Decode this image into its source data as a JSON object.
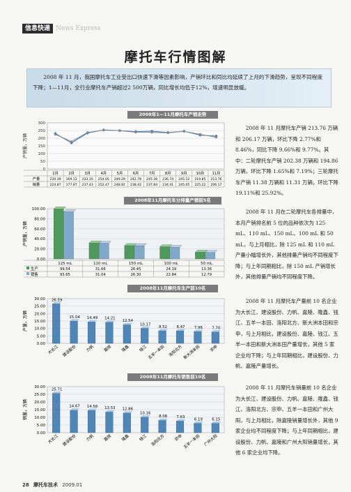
{
  "section": {
    "label": "信息快递",
    "sub": "News Express"
  },
  "title": "摩托车行情图解",
  "intro": "2008 年 11 月，我国摩托车工业受出口快速下滑等因素影响，产销环比和同比均延续了上月的下滑趋势，呈现不同程度下降；1—11月，全行业摩托车产销超过2 500万辆，同比增长均低于12%，增速明显放缓。",
  "chart1": {
    "title": "2008年1—11月摩托车产销走势",
    "ylabel": "产销量，万辆",
    "months": [
      "1月",
      "2月",
      "3月",
      "4月",
      "5月",
      "6月",
      "7月",
      "8月",
      "9月",
      "10月",
      "11月"
    ],
    "series": [
      {
        "name": "产量",
        "values": [
          230.39,
          169.12,
          233.35,
          254.05,
          249.29,
          242.78,
          245.36,
          236.74,
          245.12,
          219.85,
          213.76
        ]
      },
      {
        "name": "销量",
        "values": [
          224.87,
          177.87,
          237.43,
          252.47,
          248.81,
          238.42,
          237.84,
          234.41,
          245.05,
          225.22,
          206.17
        ]
      }
    ],
    "yticks": [
      0,
      50,
      100,
      150,
      200,
      250,
      300
    ]
  },
  "para1": "2008 年 11 月摩托车产销 213.76 万辆和 206.17 万辆，环比下降 2.77%和 8.46%，同比下降 9.66%和 9.77%。其中：二轮摩托车产销 202.38 万辆和 194.86 万辆，环比下降 1.65%和 7.19%；三轮摩托车产销 11.38 万辆和 11.31 万辆，环比下降 19.11%和 25.92%。",
  "chart2": {
    "title": "2008年11月摩托车分排量产销前5名",
    "ylabel": "产销量，万辆",
    "categories": [
      "125 mL",
      "110 mL",
      "150 mL",
      "100 mL",
      "50 mL"
    ],
    "series": [
      {
        "name": "生产",
        "values": [
          99.54,
          31.66,
          26.45,
          24.19,
          13.36
        ]
      },
      {
        "name": "销售",
        "values": [
          93.65,
          31.04,
          26.3,
          22.84,
          12.79
        ]
      }
    ],
    "yticks": [
      "0.00",
      "20.00",
      "40.00",
      "60.00",
      "80.00",
      "100.00"
    ]
  },
  "para2": "2008 年 11 月在二轮摩托车各排量中，本月产销排名前 5 位的品种依次为 125 mL、110 mL、150 mL、100 mL 和 50 mL，与上月相比，除 125 mL 和 110 mL 产量小幅增长外，其他排量产销均不同程度下降；与上年同期相比，除 150 mL 产销增长外，其他排量产销均不同程度下降。",
  "chart3": {
    "title": "2008年11月摩托车生产前10名",
    "ylabel": "产量，万辆",
    "categories": [
      "大长江",
      "建设股份",
      "力帆",
      "嘉陵",
      "隆鑫",
      "钱江",
      "五羊一本田",
      "洛阳北方",
      "新大洲本田",
      "宗申"
    ],
    "values": [
      26.59,
      15.04,
      14.49,
      14.21,
      12.54,
      10.17,
      8.52,
      8.47,
      7.96,
      7.7
    ],
    "yticks": [
      "0.00",
      "5.00",
      "10.00",
      "15.00",
      "20.00",
      "25.00",
      "30.00"
    ]
  },
  "para3": "2008 年 11 月摩托车产量前 10 名企业为大长江、建设股份、力帆、嘉陵、隆鑫、钱江、五羊一本田、洛阳北方、新大洲本田和宗申，与上月相比，建设股份、嘉陵、钱江、五羊一本田和新大洲本田产量增长，其他 5 家企业均下降；与上年同期相比，建设股份、力帆、嘉陵产量增长。",
  "chart4": {
    "title": "2008年11月摩托车销售前10名",
    "ylabel": "销量，万辆",
    "categories": [
      "大长江",
      "建设股份",
      "力帆",
      "嘉陵",
      "隆鑫",
      "钱江",
      "洛阳北方",
      "宗申",
      "五羊一本田",
      "广州大阳"
    ],
    "values": [
      25.71,
      14.67,
      14.58,
      13.53,
      12.86,
      10.16,
      8.08,
      7.63,
      6.19,
      6.15
    ],
    "yticks": [
      "0.00",
      "5.00",
      "10.00",
      "15.00",
      "20.00",
      "25.00",
      "30.00"
    ]
  },
  "para4": "2008 年 11 月摩托车销量前 10 名企业为大长江、建设股份、力帆、嘉陵、隆鑫、钱江、洛阳北方、宗申、五羊一本田和广州大阳，与上月相比，除嘉陵销量增长外，其他 9 家企业均不同程度下降；与上年同期相比，建设股份、力帆、嘉陵和广州大阳销量增长，其他 6 家企业均下降。",
  "footer": {
    "page": "28",
    "mag": "摩托车技术",
    "date": "2009.01"
  },
  "chart_data": [
    {
      "type": "line",
      "title": "2008年1—11月摩托车产销走势",
      "ylabel": "产销量，万辆",
      "ylim": [
        0,
        300
      ],
      "categories": [
        "1月",
        "2月",
        "3月",
        "4月",
        "5月",
        "6月",
        "7月",
        "8月",
        "9月",
        "10月",
        "11月"
      ],
      "series": [
        {
          "name": "产量",
          "values": [
            230.39,
            169.12,
            233.35,
            254.05,
            249.29,
            242.78,
            245.36,
            236.74,
            245.12,
            219.85,
            213.76
          ]
        },
        {
          "name": "销量",
          "values": [
            224.87,
            177.87,
            237.43,
            252.47,
            248.81,
            238.42,
            237.84,
            234.41,
            245.05,
            225.22,
            206.17
          ]
        }
      ]
    },
    {
      "type": "bar",
      "title": "2008年11月摩托车分排量产销前5名",
      "ylabel": "产销量，万辆",
      "ylim": [
        0,
        100
      ],
      "categories": [
        "125 mL",
        "110 mL",
        "150 mL",
        "100 mL",
        "50 mL"
      ],
      "series": [
        {
          "name": "生产",
          "values": [
            99.54,
            31.66,
            26.45,
            24.19,
            13.36
          ]
        },
        {
          "name": "销售",
          "values": [
            93.65,
            31.04,
            26.3,
            22.84,
            12.79
          ]
        }
      ]
    },
    {
      "type": "bar",
      "title": "2008年11月摩托车生产前10名",
      "ylabel": "产量，万辆",
      "ylim": [
        0,
        30
      ],
      "categories": [
        "大长江",
        "建设股份",
        "力帆",
        "嘉陵",
        "隆鑫",
        "钱江",
        "五羊一本田",
        "洛阳北方",
        "新大洲本田",
        "宗申"
      ],
      "values": [
        26.59,
        15.04,
        14.49,
        14.21,
        12.54,
        10.17,
        8.52,
        8.47,
        7.96,
        7.7
      ]
    },
    {
      "type": "bar",
      "title": "2008年11月摩托车销售前10名",
      "ylabel": "销量，万辆",
      "ylim": [
        0,
        30
      ],
      "categories": [
        "大长江",
        "建设股份",
        "力帆",
        "嘉陵",
        "隆鑫",
        "钱江",
        "洛阳北方",
        "宗申",
        "五羊一本田",
        "广州大阳"
      ],
      "values": [
        25.71,
        14.67,
        14.58,
        13.53,
        12.86,
        10.16,
        8.08,
        7.63,
        6.19,
        6.15
      ]
    }
  ]
}
